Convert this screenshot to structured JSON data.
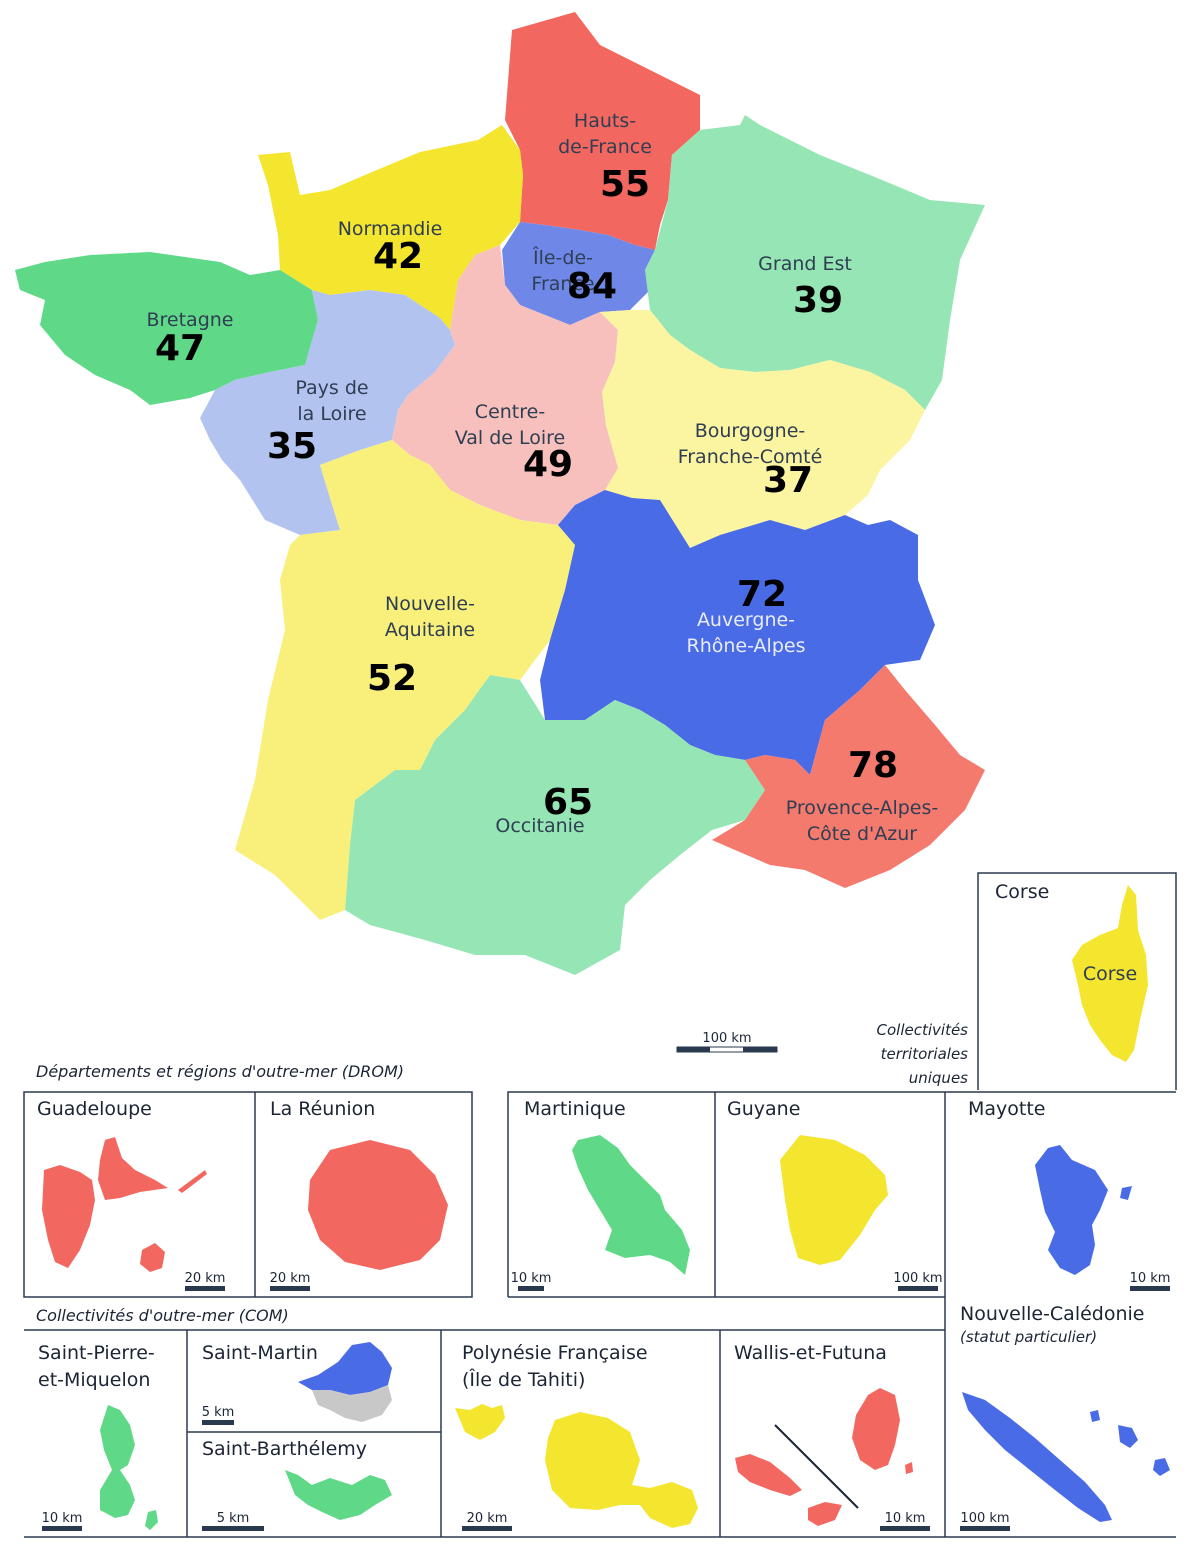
{
  "colors": {
    "red": "#f2675f",
    "yellow": "#f4e52f",
    "light_yellow": "#f8f07a",
    "pale_yellow": "#fbf4a0",
    "green": "#5fd987",
    "mint": "#95e6b4",
    "light_blue": "#b3c3f0",
    "medium_blue": "#6f88e8",
    "blue": "#4a6be6",
    "pink": "#f7c0bd",
    "coral": "#f47a6e",
    "grey": "#c8c8c8",
    "frame": "#2a3a4e"
  },
  "regions": [
    {
      "id": "hauts-de-france",
      "name_lines": [
        "Hauts-",
        "de-France"
      ],
      "value": "55",
      "color": "red"
    },
    {
      "id": "normandie",
      "name_lines": [
        "Normandie"
      ],
      "value": "42",
      "color": "yellow"
    },
    {
      "id": "ile-de-france",
      "name_lines": [
        "Île-de-",
        "France"
      ],
      "value": "84",
      "color": "medium_blue"
    },
    {
      "id": "grand-est",
      "name_lines": [
        "Grand Est"
      ],
      "value": "39",
      "color": "mint"
    },
    {
      "id": "bretagne",
      "name_lines": [
        "Bretagne"
      ],
      "value": "47",
      "color": "green"
    },
    {
      "id": "pays-de-la-loire",
      "name_lines": [
        "Pays de",
        "la Loire"
      ],
      "value": "35",
      "color": "light_blue"
    },
    {
      "id": "centre-val-de-loire",
      "name_lines": [
        "Centre-",
        "Val de Loire"
      ],
      "value": "49",
      "color": "pink"
    },
    {
      "id": "bourgogne-franche-comte",
      "name_lines": [
        "Bourgogne-",
        "Franche-Comté"
      ],
      "value": "37",
      "color": "pale_yellow"
    },
    {
      "id": "nouvelle-aquitaine",
      "name_lines": [
        "Nouvelle-",
        "Aquitaine"
      ],
      "value": "52",
      "color": "light_yellow"
    },
    {
      "id": "auvergne-rhone-alpes",
      "name_lines": [
        "Auvergne-",
        "Rhône-Alpes"
      ],
      "value": "72",
      "color": "blue"
    },
    {
      "id": "occitanie",
      "name_lines": [
        "Occitanie"
      ],
      "value": "65",
      "color": "mint"
    },
    {
      "id": "provence-alpes-cote-d-azur",
      "name_lines": [
        "Provence-Alpes-",
        "Côte d'Azur"
      ],
      "value": "78",
      "color": "coral"
    }
  ],
  "corse": {
    "panel_title": "Corse",
    "label": "Corse"
  },
  "main_scale": "100 km",
  "ctu_label_lines": [
    "Collectivités",
    "territoriales",
    "uniques"
  ],
  "drom_section_title": "Départements et régions d'outre-mer (DROM)",
  "com_section_title": "Collectivités d'outre-mer (COM)",
  "drom_panels": [
    {
      "id": "guadeloupe",
      "title": "Guadeloupe",
      "scale": "20 km"
    },
    {
      "id": "la-reunion",
      "title": "La Réunion",
      "scale": "20 km"
    },
    {
      "id": "martinique",
      "title": "Martinique",
      "scale": "10 km"
    },
    {
      "id": "guyane",
      "title": "Guyane",
      "scale": "100 km"
    },
    {
      "id": "mayotte",
      "title": "Mayotte",
      "scale": "10 km"
    }
  ],
  "com_panels": [
    {
      "id": "saint-pierre-et-miquelon",
      "title_lines": [
        "Saint-Pierre-",
        "et-Miquelon"
      ],
      "scale": "10 km"
    },
    {
      "id": "saint-martin",
      "title_lines": [
        "Saint-Martin"
      ],
      "scale": "5 km"
    },
    {
      "id": "saint-barthelemy",
      "title_lines": [
        "Saint-Barthélemy"
      ],
      "scale": "5 km"
    },
    {
      "id": "polynesie-francaise",
      "title_lines": [
        "Polynésie Française",
        "(Île de Tahiti)"
      ],
      "scale": "20 km"
    },
    {
      "id": "wallis-et-futuna",
      "title_lines": [
        "Wallis-et-Futuna"
      ],
      "scale": "10 km"
    }
  ],
  "nouvelle_caledonie": {
    "title": "Nouvelle-Calédonie",
    "subtitle": "(statut particulier)",
    "scale": "100 km"
  }
}
